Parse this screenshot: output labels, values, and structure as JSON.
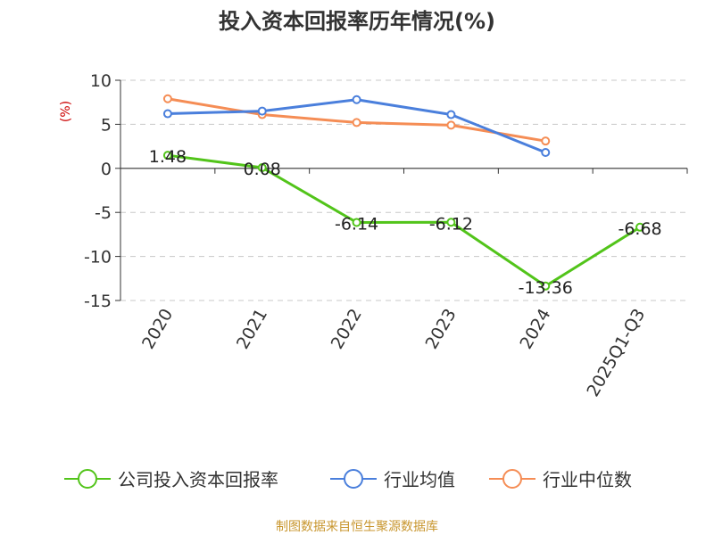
{
  "chart_data": {
    "type": "line",
    "title": "投入资本回报率历年情况(%)",
    "ylabel": "(%)",
    "categories": [
      "2020",
      "2021",
      "2022",
      "2023",
      "2024",
      "2025Q1-Q3"
    ],
    "ylim": [
      -15,
      10
    ],
    "yticks": [
      "10",
      "5",
      "0",
      "-5",
      "-10",
      "-15"
    ],
    "grid": true,
    "legend_position": "bottom",
    "series": [
      {
        "name": "公司投入资本回报率",
        "color": "#52c41a",
        "values": [
          1.48,
          0.08,
          -6.14,
          -6.12,
          -13.36,
          -6.68
        ],
        "labels": [
          "1.48",
          "0.08",
          "-6.14",
          "-6.12",
          "-13.36",
          "-6.68"
        ]
      },
      {
        "name": "行业均值",
        "color": "#4a7fdc",
        "values": [
          6.2,
          6.5,
          7.8,
          6.1,
          1.8,
          null
        ]
      },
      {
        "name": "行业中位数",
        "color": "#f58d55",
        "values": [
          7.9,
          6.1,
          5.2,
          4.9,
          3.1,
          null
        ]
      }
    ]
  },
  "source": "制图数据来自恒生聚源数据库"
}
